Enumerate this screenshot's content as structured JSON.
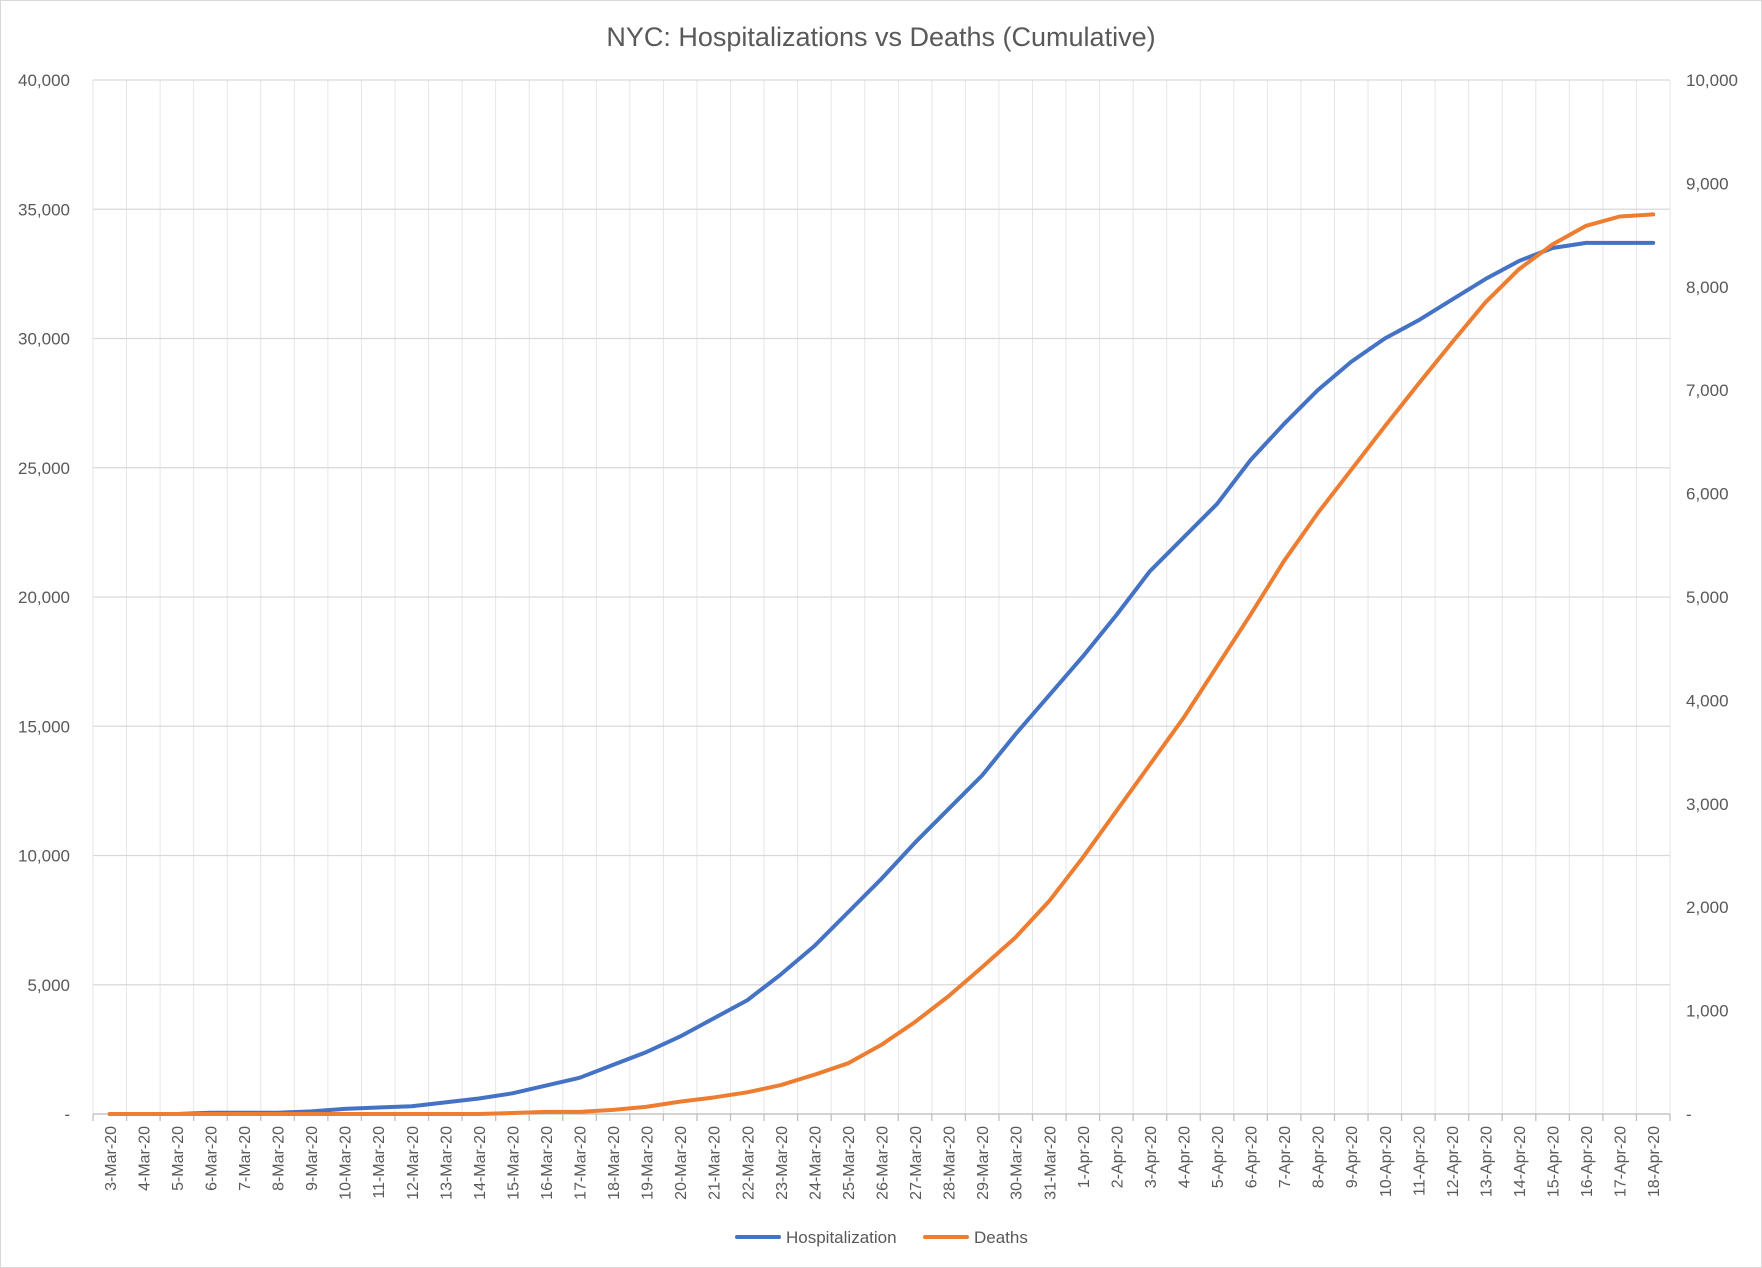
{
  "chart_data": {
    "type": "line",
    "title": "NYC: Hospitalizations vs Deaths (Cumulative)",
    "xlabel": "",
    "ylabel": "",
    "categories": [
      "3-Mar-20",
      "4-Mar-20",
      "5-Mar-20",
      "6-Mar-20",
      "7-Mar-20",
      "8-Mar-20",
      "9-Mar-20",
      "10-Mar-20",
      "11-Mar-20",
      "12-Mar-20",
      "13-Mar-20",
      "14-Mar-20",
      "15-Mar-20",
      "16-Mar-20",
      "17-Mar-20",
      "18-Mar-20",
      "19-Mar-20",
      "20-Mar-20",
      "21-Mar-20",
      "22-Mar-20",
      "23-Mar-20",
      "24-Mar-20",
      "25-Mar-20",
      "26-Mar-20",
      "27-Mar-20",
      "28-Mar-20",
      "29-Mar-20",
      "30-Mar-20",
      "31-Mar-20",
      "1-Apr-20",
      "2-Apr-20",
      "3-Apr-20",
      "4-Apr-20",
      "5-Apr-20",
      "6-Apr-20",
      "7-Apr-20",
      "8-Apr-20",
      "9-Apr-20",
      "10-Apr-20",
      "11-Apr-20",
      "12-Apr-20",
      "13-Apr-20",
      "14-Apr-20",
      "15-Apr-20",
      "16-Apr-20",
      "17-Apr-20",
      "18-Apr-20"
    ],
    "y_left": {
      "min": 0,
      "max": 40000,
      "ticks": [
        0,
        5000,
        10000,
        15000,
        20000,
        25000,
        30000,
        35000,
        40000
      ],
      "tick_labels": [
        "-",
        "5,000",
        "10,000",
        "15,000",
        "20,000",
        "25,000",
        "30,000",
        "35,000",
        "40,000"
      ]
    },
    "y_right": {
      "min": 0,
      "max": 10000,
      "ticks": [
        0,
        1000,
        2000,
        3000,
        4000,
        5000,
        6000,
        7000,
        8000,
        9000,
        10000
      ],
      "tick_labels": [
        "-",
        "1,000",
        "2,000",
        "3,000",
        "4,000",
        "5,000",
        "6,000",
        "7,000",
        "8,000",
        "9,000",
        "10,000"
      ]
    },
    "series": [
      {
        "name": "Hospitalization",
        "axis": "left",
        "color": "#4472C4",
        "values": [
          0,
          0,
          0,
          50,
          50,
          50,
          100,
          200,
          250,
          300,
          450,
          600,
          800,
          1100,
          1400,
          1900,
          2400,
          3000,
          3700,
          4400,
          5400,
          6500,
          7800,
          9100,
          10500,
          11800,
          13100,
          14700,
          16200,
          17700,
          19300,
          21000,
          22300,
          23600,
          25300,
          26700,
          28000,
          29100,
          30000,
          30700,
          31500,
          32300,
          33000,
          33500,
          33700,
          33700,
          33700
        ]
      },
      {
        "name": "Deaths",
        "axis": "right",
        "color": "#ED7D31",
        "values": [
          0,
          0,
          0,
          0,
          0,
          0,
          0,
          0,
          0,
          0,
          0,
          0,
          10,
          20,
          20,
          40,
          70,
          120,
          160,
          210,
          280,
          380,
          490,
          670,
          890,
          1140,
          1420,
          1710,
          2060,
          2480,
          2930,
          3380,
          3830,
          4330,
          4830,
          5350,
          5810,
          6230,
          6650,
          7060,
          7460,
          7850,
          8170,
          8410,
          8590,
          8680,
          8700
        ]
      }
    ],
    "grid": true,
    "legend": "bottom"
  }
}
